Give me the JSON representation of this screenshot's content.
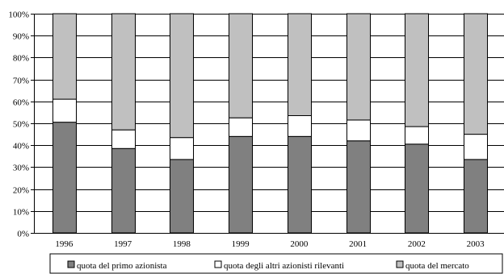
{
  "chart_data": {
    "type": "bar",
    "stacked": true,
    "categories": [
      "1996",
      "1997",
      "1998",
      "1999",
      "2000",
      "2001",
      "2002",
      "2003"
    ],
    "series": [
      {
        "name": "quota del primo azionista",
        "color": "#808080",
        "values": [
          50.5,
          38.5,
          33.5,
          44,
          44,
          42,
          40.5,
          33.5
        ]
      },
      {
        "name": "quota degli altri azionisti rilevanti",
        "color": "#ffffff",
        "values": [
          10.5,
          8.5,
          10,
          8.5,
          9.5,
          9.5,
          8,
          11.5
        ]
      },
      {
        "name": "quota del mercato",
        "color": "#c0c0c0",
        "values": [
          39,
          53,
          56.5,
          47.5,
          46.5,
          48.5,
          51.5,
          55
        ]
      }
    ],
    "ylim": [
      0,
      100
    ],
    "yticks": [
      "0%",
      "10%",
      "20%",
      "30%",
      "40%",
      "50%",
      "60%",
      "70%",
      "80%",
      "90%",
      "100%"
    ],
    "grid": true,
    "legend_position": "bottom"
  }
}
